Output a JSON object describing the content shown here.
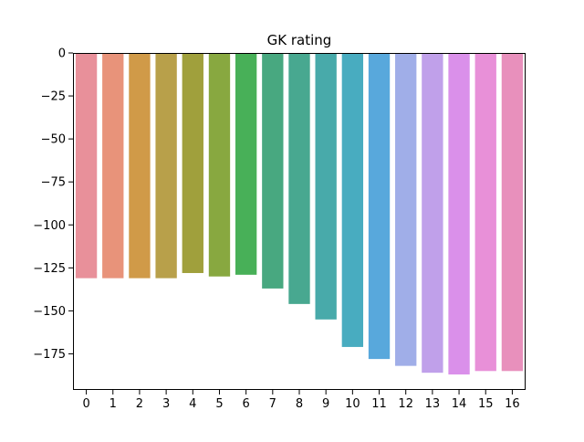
{
  "chart_data": {
    "type": "bar",
    "title": "GK rating",
    "xlabel": "",
    "ylabel": "",
    "categories": [
      "0",
      "1",
      "2",
      "3",
      "4",
      "5",
      "6",
      "7",
      "8",
      "9",
      "10",
      "11",
      "12",
      "13",
      "14",
      "15",
      "16"
    ],
    "values": [
      -131,
      -131,
      -131,
      -131,
      -128,
      -130,
      -129,
      -137,
      -146,
      -155,
      -171,
      -178,
      -182,
      -186,
      -187,
      -185,
      -185
    ],
    "colors": [
      "#e8909a",
      "#e8937a",
      "#d09a48",
      "#b8a04a",
      "#a0a03c",
      "#88a840",
      "#48b058",
      "#48a880",
      "#48a890",
      "#48aaaa",
      "#48acc0",
      "#58a8dc",
      "#a0aee8",
      "#c0a0ea",
      "#da90ea",
      "#e890d8",
      "#e890bc"
    ],
    "ylim": [
      -196,
      0
    ],
    "yticks": [
      0,
      -25,
      -50,
      -75,
      -100,
      -125,
      -150,
      -175
    ],
    "ytick_labels": [
      "0",
      "−25",
      "−50",
      "−75",
      "−100",
      "−125",
      "−150",
      "−175"
    ],
    "grid": false,
    "legend": "none"
  }
}
